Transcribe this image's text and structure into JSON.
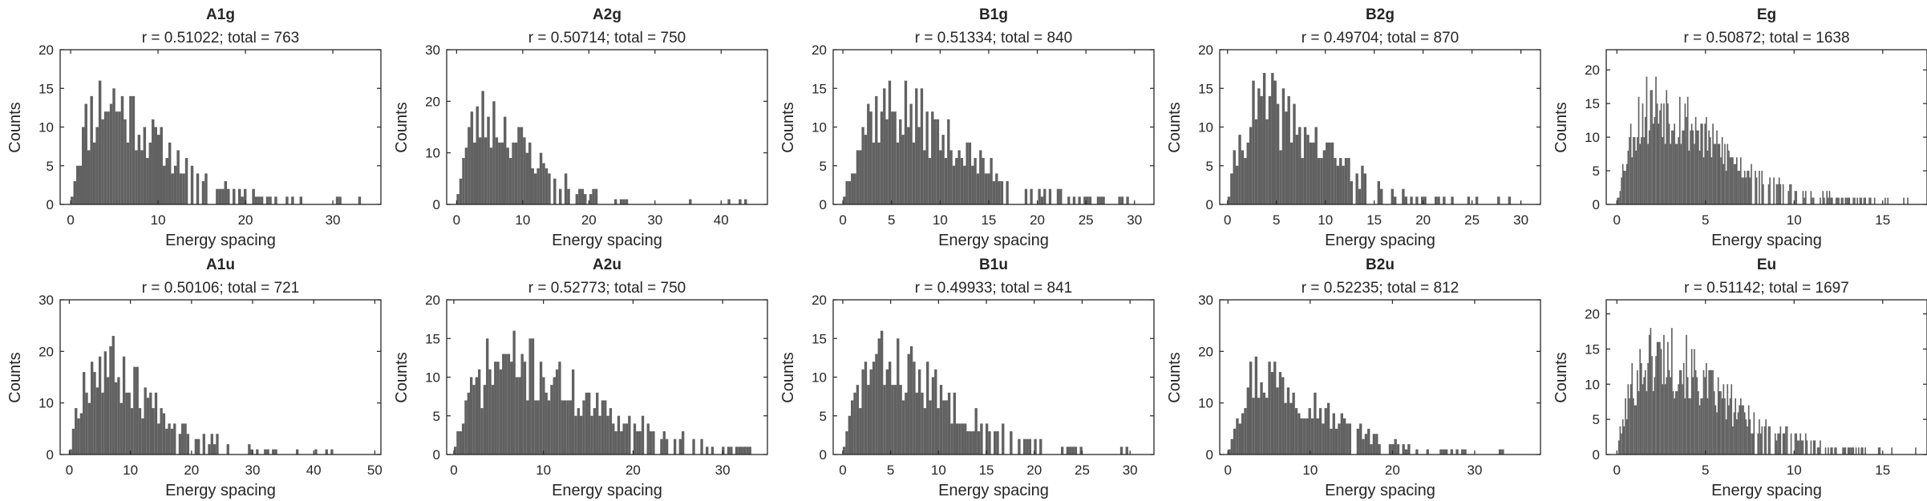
{
  "figure": {
    "bar_color": "#616161",
    "axis_color": "#262626",
    "background": "#ffffff"
  },
  "chart_data": [
    {
      "type": "bar",
      "name": "A1g",
      "title": "A1g",
      "subtitle": "r = 0.51022; total = 763",
      "xlabel": "Energy spacing",
      "ylabel": "Counts",
      "xlim": [
        -1.2,
        35.5
      ],
      "ylim": [
        0,
        20
      ],
      "xticks": [
        0,
        10,
        20,
        30
      ],
      "yticks": [
        0,
        5,
        10,
        15,
        20
      ],
      "grid": false,
      "n_bins": 108,
      "bin_x_start": 0,
      "bin_x_end": 34.5,
      "seed": 11,
      "peak_x": 4.2,
      "peak_y": 18,
      "values": []
    },
    {
      "type": "bar",
      "name": "A2g",
      "title": "A2g",
      "subtitle": "r = 0.50714; total = 750",
      "xlabel": "Energy spacing",
      "ylabel": "Counts",
      "xlim": [
        -1.5,
        47
      ],
      "ylim": [
        0,
        30
      ],
      "xticks": [
        0,
        10,
        20,
        30,
        40
      ],
      "yticks": [
        0,
        10,
        20,
        30
      ],
      "grid": false,
      "n_bins": 110,
      "bin_x_start": 0,
      "bin_x_end": 46,
      "seed": 23,
      "peak_x": 4.5,
      "peak_y": 23,
      "values": []
    },
    {
      "type": "bar",
      "name": "B1g",
      "title": "B1g",
      "subtitle": "r = 0.51334; total = 840",
      "xlabel": "Energy spacing",
      "ylabel": "Counts",
      "xlim": [
        -1,
        32
      ],
      "ylim": [
        0,
        20
      ],
      "xticks": [
        0,
        5,
        10,
        15,
        20,
        25,
        30
      ],
      "yticks": [
        0,
        5,
        10,
        15,
        20
      ],
      "grid": false,
      "n_bins": 112,
      "bin_x_start": 0,
      "bin_x_end": 30.8,
      "seed": 37,
      "peak_x": 4.8,
      "peak_y": 17,
      "values": []
    },
    {
      "type": "bar",
      "name": "B2g",
      "title": "B2g",
      "subtitle": "r = 0.49704; total = 870",
      "xlabel": "Energy spacing",
      "ylabel": "Counts",
      "xlim": [
        -0.8,
        32
      ],
      "ylim": [
        0,
        20
      ],
      "xticks": [
        0,
        5,
        10,
        15,
        20,
        25,
        30
      ],
      "yticks": [
        0,
        5,
        10,
        15,
        20
      ],
      "grid": false,
      "n_bins": 112,
      "bin_x_start": 0,
      "bin_x_end": 31.2,
      "seed": 41,
      "peak_x": 4.0,
      "peak_y": 17,
      "values": []
    },
    {
      "type": "bar",
      "name": "Eg",
      "title": "Eg",
      "subtitle": "r = 0.50872; total = 1638",
      "xlabel": "Energy spacing",
      "ylabel": "Counts",
      "xlim": [
        -0.6,
        17.5
      ],
      "ylim": [
        0,
        23
      ],
      "xticks": [
        0,
        5,
        10,
        15
      ],
      "yticks": [
        0,
        5,
        10,
        15,
        20
      ],
      "grid": false,
      "n_bins": 230,
      "bin_x_start": 0,
      "bin_x_end": 17.2,
      "seed": 53,
      "peak_x": 2.3,
      "peak_y": 20,
      "values": []
    },
    {
      "type": "bar",
      "name": "A1u",
      "title": "A1u",
      "subtitle": "r = 0.50106; total = 721",
      "xlabel": "Energy spacing",
      "ylabel": "Counts",
      "xlim": [
        -1.5,
        51
      ],
      "ylim": [
        0,
        30
      ],
      "xticks": [
        0,
        10,
        20,
        30,
        40,
        50
      ],
      "yticks": [
        0,
        10,
        20,
        30
      ],
      "grid": false,
      "n_bins": 110,
      "bin_x_start": 0,
      "bin_x_end": 48,
      "seed": 67,
      "peak_x": 5.5,
      "peak_y": 24,
      "values": []
    },
    {
      "type": "bar",
      "name": "A2u",
      "title": "A2u",
      "subtitle": "r = 0.52773; total = 750",
      "xlabel": "Energy spacing",
      "ylabel": "Counts",
      "xlim": [
        -0.8,
        35
      ],
      "ylim": [
        0,
        20
      ],
      "xticks": [
        0,
        10,
        20,
        30
      ],
      "yticks": [
        0,
        5,
        10,
        15,
        20
      ],
      "grid": false,
      "n_bins": 112,
      "bin_x_start": 0,
      "bin_x_end": 33.5,
      "seed": 71,
      "peak_x": 6.0,
      "peak_y": 16,
      "values": []
    },
    {
      "type": "bar",
      "name": "B1u",
      "title": "B1u",
      "subtitle": "r = 0.49933; total = 841",
      "xlabel": "Energy spacing",
      "ylabel": "Counts",
      "xlim": [
        -1,
        32.5
      ],
      "ylim": [
        0,
        20
      ],
      "xticks": [
        0,
        5,
        10,
        15,
        20,
        25,
        30
      ],
      "yticks": [
        0,
        5,
        10,
        15,
        20
      ],
      "grid": false,
      "n_bins": 112,
      "bin_x_start": 0,
      "bin_x_end": 31.5,
      "seed": 83,
      "peak_x": 4.5,
      "peak_y": 16,
      "values": []
    },
    {
      "type": "bar",
      "name": "B2u",
      "title": "B2u",
      "subtitle": "r = 0.52235; total = 812",
      "xlabel": "Energy spacing",
      "ylabel": "Counts",
      "xlim": [
        -1,
        38
      ],
      "ylim": [
        0,
        30
      ],
      "xticks": [
        0,
        10,
        20,
        30
      ],
      "yticks": [
        0,
        10,
        20,
        30
      ],
      "grid": false,
      "n_bins": 112,
      "bin_x_start": 0,
      "bin_x_end": 36.5,
      "seed": 97,
      "peak_x": 4.5,
      "peak_y": 21,
      "values": []
    },
    {
      "type": "bar",
      "name": "Eu",
      "title": "Eu",
      "subtitle": "r = 0.51142; total = 1697",
      "xlabel": "Energy spacing",
      "ylabel": "Counts",
      "xlim": [
        -0.6,
        17.5
      ],
      "ylim": [
        0,
        22
      ],
      "xticks": [
        0,
        5,
        10,
        15
      ],
      "yticks": [
        0,
        5,
        10,
        15,
        20
      ],
      "grid": false,
      "n_bins": 230,
      "bin_x_start": 0,
      "bin_x_end": 17.2,
      "seed": 101,
      "peak_x": 2.4,
      "peak_y": 19,
      "values": []
    }
  ]
}
